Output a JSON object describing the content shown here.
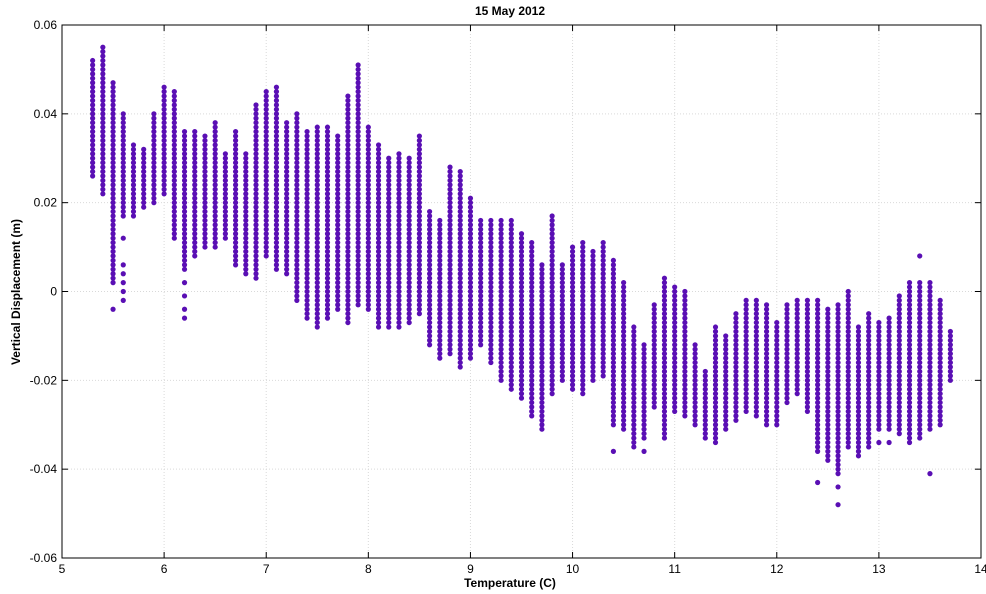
{
  "chart_data": {
    "type": "scatter",
    "title": "15 May 2012",
    "xlabel": "Temperature (C)",
    "ylabel": "Vertical Displacement (m)",
    "xlim": [
      5,
      14
    ],
    "ylim": [
      -0.06,
      0.06
    ],
    "xticks": [
      5,
      6,
      7,
      8,
      9,
      10,
      11,
      12,
      13,
      14
    ],
    "xtick_labels": [
      "5",
      "6",
      "7",
      "8",
      "9",
      "10",
      "11",
      "12",
      "13",
      "14"
    ],
    "yticks": [
      -0.06,
      -0.04,
      -0.02,
      0,
      0.02,
      0.04,
      0.06
    ],
    "ytick_labels": [
      "-0.06",
      "-0.04",
      "-0.02",
      "0",
      "0.02",
      "0.04",
      "0.06"
    ],
    "grid": true,
    "marker_color": "#5a0fb4",
    "y_step": 0.001,
    "columns": [
      {
        "x": 5.3,
        "ymin": 0.026,
        "ymax": 0.052
      },
      {
        "x": 5.4,
        "ymin": 0.022,
        "ymax": 0.055
      },
      {
        "x": 5.5,
        "ymin": 0.002,
        "ymax": 0.047,
        "outliers": [
          -0.004
        ]
      },
      {
        "x": 5.6,
        "ymin": 0.017,
        "ymax": 0.04,
        "outliers": [
          0.012,
          0.006,
          0.004,
          0.002,
          0.0,
          -0.002
        ]
      },
      {
        "x": 5.7,
        "ymin": 0.017,
        "ymax": 0.033
      },
      {
        "x": 5.8,
        "ymin": 0.019,
        "ymax": 0.032
      },
      {
        "x": 5.9,
        "ymin": 0.02,
        "ymax": 0.04
      },
      {
        "x": 6.0,
        "ymin": 0.022,
        "ymax": 0.046
      },
      {
        "x": 6.1,
        "ymin": 0.012,
        "ymax": 0.045
      },
      {
        "x": 6.2,
        "ymin": 0.005,
        "ymax": 0.036,
        "outliers": [
          0.002,
          -0.001,
          -0.004,
          -0.006
        ]
      },
      {
        "x": 6.3,
        "ymin": 0.008,
        "ymax": 0.036
      },
      {
        "x": 6.4,
        "ymin": 0.01,
        "ymax": 0.035
      },
      {
        "x": 6.5,
        "ymin": 0.01,
        "ymax": 0.038
      },
      {
        "x": 6.6,
        "ymin": 0.012,
        "ymax": 0.031
      },
      {
        "x": 6.7,
        "ymin": 0.006,
        "ymax": 0.036
      },
      {
        "x": 6.8,
        "ymin": 0.004,
        "ymax": 0.031
      },
      {
        "x": 6.9,
        "ymin": 0.003,
        "ymax": 0.042
      },
      {
        "x": 7.0,
        "ymin": 0.008,
        "ymax": 0.045
      },
      {
        "x": 7.1,
        "ymin": 0.005,
        "ymax": 0.046,
        "outliers": [
          0.024,
          0.02
        ]
      },
      {
        "x": 7.2,
        "ymin": 0.004,
        "ymax": 0.038
      },
      {
        "x": 7.3,
        "ymin": -0.002,
        "ymax": 0.04
      },
      {
        "x": 7.4,
        "ymin": -0.006,
        "ymax": 0.036
      },
      {
        "x": 7.5,
        "ymin": -0.008,
        "ymax": 0.037
      },
      {
        "x": 7.6,
        "ymin": -0.006,
        "ymax": 0.037
      },
      {
        "x": 7.7,
        "ymin": -0.004,
        "ymax": 0.035
      },
      {
        "x": 7.8,
        "ymin": -0.007,
        "ymax": 0.044
      },
      {
        "x": 7.9,
        "ymin": -0.003,
        "ymax": 0.051,
        "outliers": [
          0.026
        ]
      },
      {
        "x": 8.0,
        "ymin": -0.004,
        "ymax": 0.037
      },
      {
        "x": 8.1,
        "ymin": -0.008,
        "ymax": 0.033
      },
      {
        "x": 8.2,
        "ymin": -0.008,
        "ymax": 0.03
      },
      {
        "x": 8.3,
        "ymin": -0.008,
        "ymax": 0.031
      },
      {
        "x": 8.4,
        "ymin": -0.007,
        "ymax": 0.03
      },
      {
        "x": 8.5,
        "ymin": -0.005,
        "ymax": 0.035
      },
      {
        "x": 8.6,
        "ymin": -0.012,
        "ymax": 0.018
      },
      {
        "x": 8.7,
        "ymin": -0.015,
        "ymax": 0.016
      },
      {
        "x": 8.8,
        "ymin": -0.014,
        "ymax": 0.028
      },
      {
        "x": 8.9,
        "ymin": -0.017,
        "ymax": 0.027
      },
      {
        "x": 9.0,
        "ymin": -0.015,
        "ymax": 0.021
      },
      {
        "x": 9.1,
        "ymin": -0.012,
        "ymax": 0.016
      },
      {
        "x": 9.2,
        "ymin": -0.016,
        "ymax": 0.016
      },
      {
        "x": 9.3,
        "ymin": -0.02,
        "ymax": 0.016
      },
      {
        "x": 9.4,
        "ymin": -0.022,
        "ymax": 0.016
      },
      {
        "x": 9.5,
        "ymin": -0.024,
        "ymax": 0.013
      },
      {
        "x": 9.6,
        "ymin": -0.028,
        "ymax": 0.011
      },
      {
        "x": 9.7,
        "ymin": -0.031,
        "ymax": 0.006
      },
      {
        "x": 9.8,
        "ymin": -0.023,
        "ymax": 0.017
      },
      {
        "x": 9.9,
        "ymin": -0.02,
        "ymax": 0.006
      },
      {
        "x": 10.0,
        "ymin": -0.022,
        "ymax": 0.01
      },
      {
        "x": 10.1,
        "ymin": -0.023,
        "ymax": 0.011
      },
      {
        "x": 10.2,
        "ymin": -0.02,
        "ymax": 0.009
      },
      {
        "x": 10.3,
        "ymin": -0.019,
        "ymax": 0.011
      },
      {
        "x": 10.4,
        "ymin": -0.03,
        "ymax": 0.007,
        "outliers": [
          -0.036
        ]
      },
      {
        "x": 10.5,
        "ymin": -0.031,
        "ymax": 0.002
      },
      {
        "x": 10.6,
        "ymin": -0.035,
        "ymax": -0.008
      },
      {
        "x": 10.7,
        "ymin": -0.033,
        "ymax": -0.012,
        "outliers": [
          -0.036
        ]
      },
      {
        "x": 10.8,
        "ymin": -0.026,
        "ymax": -0.003
      },
      {
        "x": 10.9,
        "ymin": -0.033,
        "ymax": 0.003
      },
      {
        "x": 11.0,
        "ymin": -0.027,
        "ymax": 0.001
      },
      {
        "x": 11.1,
        "ymin": -0.028,
        "ymax": 0.0
      },
      {
        "x": 11.2,
        "ymin": -0.03,
        "ymax": -0.012
      },
      {
        "x": 11.3,
        "ymin": -0.033,
        "ymax": -0.018
      },
      {
        "x": 11.4,
        "ymin": -0.034,
        "ymax": -0.008
      },
      {
        "x": 11.5,
        "ymin": -0.031,
        "ymax": -0.01
      },
      {
        "x": 11.6,
        "ymin": -0.029,
        "ymax": -0.005
      },
      {
        "x": 11.7,
        "ymin": -0.027,
        "ymax": -0.002
      },
      {
        "x": 11.8,
        "ymin": -0.028,
        "ymax": -0.002
      },
      {
        "x": 11.9,
        "ymin": -0.03,
        "ymax": -0.003
      },
      {
        "x": 12.0,
        "ymin": -0.03,
        "ymax": -0.007
      },
      {
        "x": 12.1,
        "ymin": -0.025,
        "ymax": -0.003
      },
      {
        "x": 12.2,
        "ymin": -0.023,
        "ymax": -0.002
      },
      {
        "x": 12.3,
        "ymin": -0.027,
        "ymax": -0.002
      },
      {
        "x": 12.4,
        "ymin": -0.036,
        "ymax": -0.002,
        "outliers": [
          -0.043
        ]
      },
      {
        "x": 12.5,
        "ymin": -0.038,
        "ymax": -0.004
      },
      {
        "x": 12.6,
        "ymin": -0.041,
        "ymax": -0.003,
        "outliers": [
          -0.044,
          -0.048
        ]
      },
      {
        "x": 12.7,
        "ymin": -0.035,
        "ymax": 0.0
      },
      {
        "x": 12.8,
        "ymin": -0.037,
        "ymax": -0.008
      },
      {
        "x": 12.9,
        "ymin": -0.035,
        "ymax": -0.005
      },
      {
        "x": 13.0,
        "ymin": -0.031,
        "ymax": -0.007,
        "outliers": [
          -0.034
        ]
      },
      {
        "x": 13.1,
        "ymin": -0.031,
        "ymax": -0.006,
        "outliers": [
          -0.034
        ]
      },
      {
        "x": 13.2,
        "ymin": -0.032,
        "ymax": -0.001
      },
      {
        "x": 13.3,
        "ymin": -0.034,
        "ymax": 0.002
      },
      {
        "x": 13.4,
        "ymin": -0.033,
        "ymax": 0.002,
        "outliers": [
          0.008
        ]
      },
      {
        "x": 13.5,
        "ymin": -0.031,
        "ymax": 0.002,
        "outliers": [
          -0.041
        ]
      },
      {
        "x": 13.6,
        "ymin": -0.03,
        "ymax": -0.002
      },
      {
        "x": 13.7,
        "ymin": -0.02,
        "ymax": -0.009
      }
    ]
  }
}
